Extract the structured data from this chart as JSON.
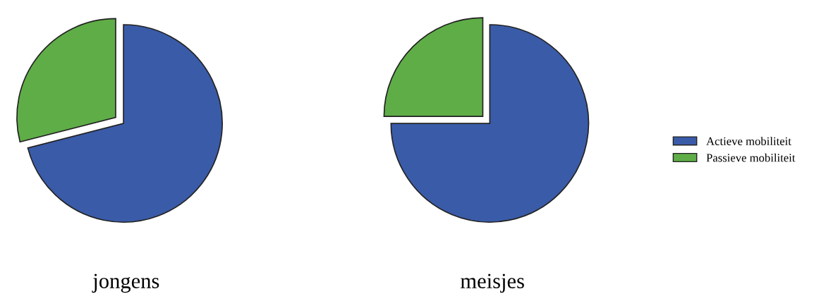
{
  "chart_data": [
    {
      "type": "pie",
      "title": "jongens",
      "categories": [
        "Actieve mobiliteit",
        "Passieve mobiliteit"
      ],
      "values": [
        71,
        29
      ],
      "colors": [
        "#3a5ba8",
        "#5fad47"
      ],
      "legend": "right"
    },
    {
      "type": "pie",
      "title": "meisjes",
      "categories": [
        null,
        null
      ],
      "values": [
        75,
        25
      ],
      "colors": [
        "#3a5ba8",
        "#5fad47"
      ],
      "legend": false
    }
  ]
}
